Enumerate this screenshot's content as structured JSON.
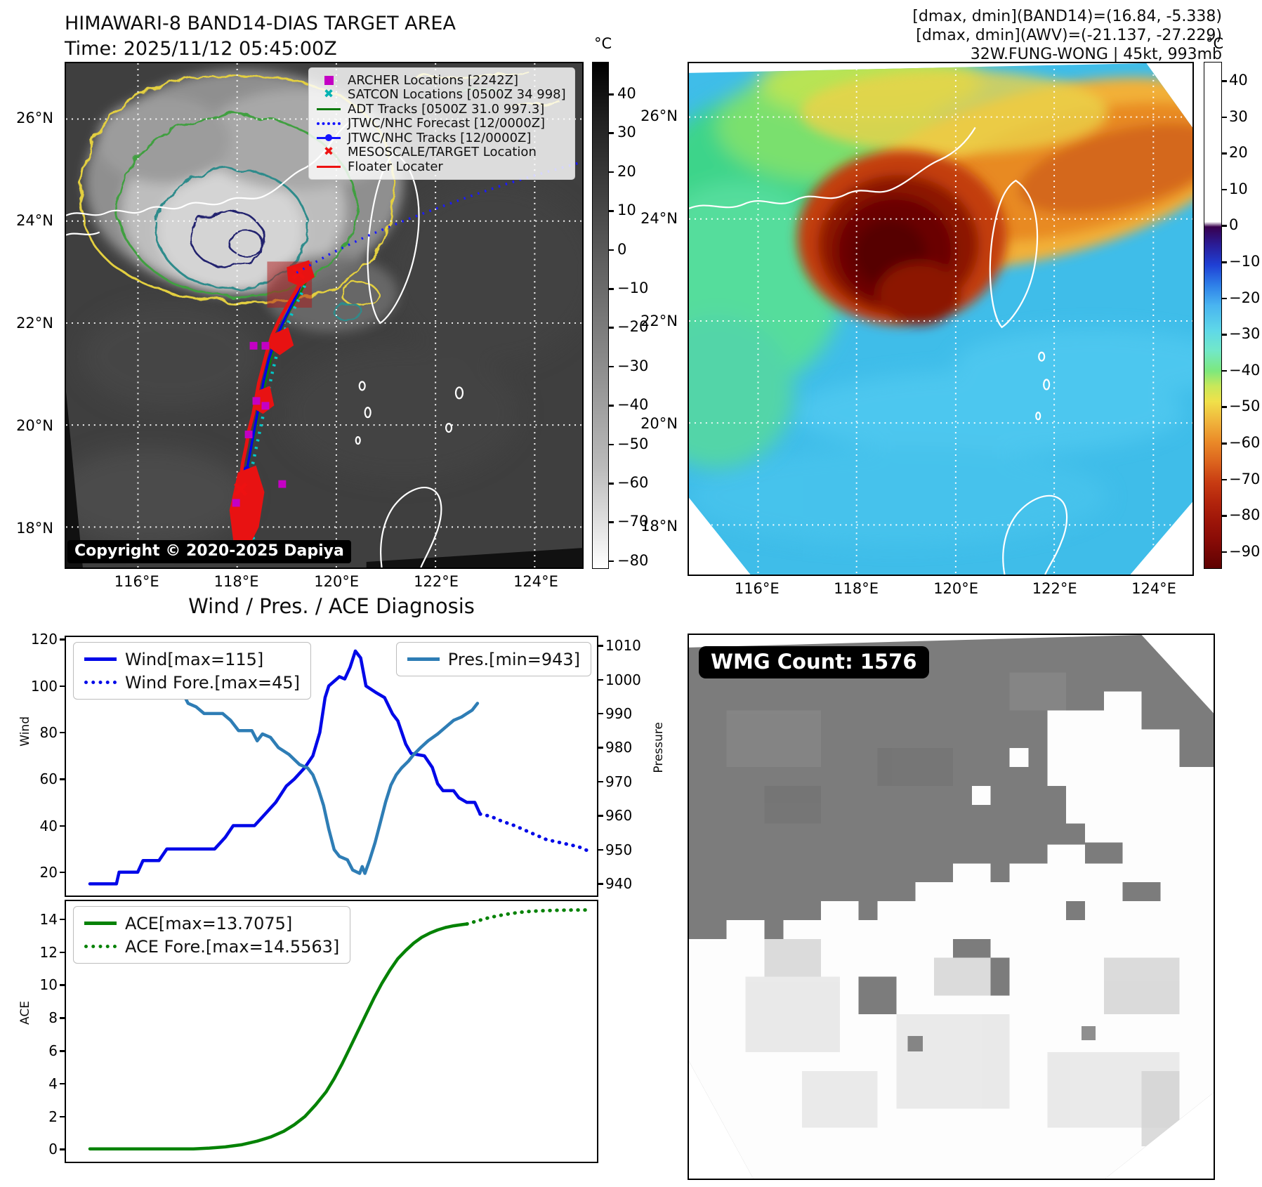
{
  "band14": {
    "title": "HIMAWARI-8 BAND14-DIAS TARGET AREA",
    "time": "Time: 2025/11/12 05:45:00Z",
    "copyright": "Copyright © 2020-2025 Dapiya",
    "legend": [
      {
        "label": "ARCHER Locations [2242Z]",
        "marker": "square",
        "color": "#c400c4"
      },
      {
        "label": "SATCON Locations [0500Z 34 998]",
        "marker": "cross",
        "color": "#00b2b2"
      },
      {
        "label": "ADT Tracks [0500Z 31.0 997.3]",
        "marker": "line",
        "color": "#0e7a0e"
      },
      {
        "label": "JTWC/NHC Forecast [12/0000Z]",
        "marker": "dotted",
        "color": "#1414ff"
      },
      {
        "label": "JTWC/NHC Tracks [12/0000Z]",
        "marker": "line-dot",
        "color": "#1414ff"
      },
      {
        "label": "MESOSCALE/TARGET Location",
        "marker": "cross",
        "color": "#ee1111"
      },
      {
        "label": "Floater Locater",
        "marker": "line",
        "color": "#ee1111"
      }
    ],
    "lon_ticks": [
      "116°E",
      "118°E",
      "120°E",
      "122°E",
      "124°E"
    ],
    "lat_ticks": [
      "26°N",
      "24°N",
      "22°N",
      "20°N",
      "18°N"
    ],
    "colorbar": {
      "unit": "°C",
      "ticks": [
        "40",
        "30",
        "20",
        "10",
        "0",
        "−10",
        "−20",
        "−30",
        "−40",
        "−50",
        "−60",
        "−70",
        "−80"
      ]
    }
  },
  "awv": {
    "header": [
      "[dmax, dmin](BAND14)=(16.84, -5.338)",
      "[dmax, dmin](AWV)=(-21.137, -27.229)",
      "32W.FUNG-WONG | 45kt, 993mb"
    ],
    "lon_ticks": [
      "116°E",
      "118°E",
      "120°E",
      "122°E",
      "124°E"
    ],
    "lat_ticks": [
      "26°N",
      "24°N",
      "22°N",
      "20°N",
      "18°N"
    ],
    "colorbar": {
      "unit": "°C",
      "ticks": [
        "40",
        "30",
        "20",
        "10",
        "0",
        "−10",
        "−20",
        "−30",
        "−40",
        "−50",
        "−60",
        "−70",
        "−80",
        "−90"
      ]
    }
  },
  "diagnosis": {
    "title": "Wind / Pres. / ACE Diagnosis"
  },
  "wmg": {
    "count_label": "WMG Count: 1576"
  },
  "chart_data": [
    {
      "type": "line",
      "title": "Wind / Pres. / ACE Diagnosis",
      "ylabel": "Wind",
      "ylabel_right": "Pressure",
      "ylim": [
        10,
        121
      ],
      "ylim_right": [
        936.5,
        1012.5
      ],
      "yticks": [
        120,
        100,
        80,
        60,
        40,
        20
      ],
      "yticks_right": [
        1010,
        1000,
        990,
        980,
        970,
        960,
        950,
        940
      ],
      "grid": false,
      "legend_position": "upper left / upper right",
      "series": [
        {
          "name": "Wind[max=115]",
          "color": "#0008e8",
          "style": "solid",
          "axis": "left",
          "points": [
            [
              0.045,
              15
            ],
            [
              0.095,
              15
            ],
            [
              0.1,
              20
            ],
            [
              0.135,
              20
            ],
            [
              0.145,
              25
            ],
            [
              0.175,
              25
            ],
            [
              0.19,
              30
            ],
            [
              0.28,
              30
            ],
            [
              0.3,
              35
            ],
            [
              0.315,
              40
            ],
            [
              0.355,
              40
            ],
            [
              0.375,
              45
            ],
            [
              0.395,
              50
            ],
            [
              0.415,
              57
            ],
            [
              0.43,
              60
            ],
            [
              0.45,
              65
            ],
            [
              0.465,
              70
            ],
            [
              0.478,
              80
            ],
            [
              0.488,
              95
            ],
            [
              0.495,
              100
            ],
            [
              0.515,
              104
            ],
            [
              0.525,
              103
            ],
            [
              0.535,
              108
            ],
            [
              0.545,
              115
            ],
            [
              0.555,
              112
            ],
            [
              0.565,
              100
            ],
            [
              0.585,
              97
            ],
            [
              0.6,
              95
            ],
            [
              0.615,
              88
            ],
            [
              0.625,
              85
            ],
            [
              0.64,
              75
            ],
            [
              0.65,
              71
            ],
            [
              0.675,
              70
            ],
            [
              0.69,
              65
            ],
            [
              0.7,
              58
            ],
            [
              0.71,
              55
            ],
            [
              0.73,
              55
            ],
            [
              0.74,
              52
            ],
            [
              0.755,
              50
            ],
            [
              0.77,
              50
            ],
            [
              0.78,
              45
            ]
          ]
        },
        {
          "name": "Wind Fore.[max=45]",
          "color": "#0008e8",
          "style": "dotted",
          "axis": "left",
          "points": [
            [
              0.78,
              45
            ],
            [
              0.8,
              44
            ],
            [
              0.82,
              42
            ],
            [
              0.845,
              40
            ],
            [
              0.865,
              38
            ],
            [
              0.885,
              36
            ],
            [
              0.905,
              34
            ],
            [
              0.925,
              33
            ],
            [
              0.945,
              32
            ],
            [
              0.965,
              31
            ],
            [
              0.985,
              29
            ]
          ]
        },
        {
          "name": "Pres.[min=943]",
          "color": "#2e7db5",
          "style": "solid",
          "axis": "right",
          "points": [
            [
              0.045,
              1003
            ],
            [
              0.07,
              1002
            ],
            [
              0.095,
              1002
            ],
            [
              0.105,
              1000
            ],
            [
              0.125,
              1000
            ],
            [
              0.14,
              999
            ],
            [
              0.155,
              998
            ],
            [
              0.185,
              998
            ],
            [
              0.195,
              995
            ],
            [
              0.205,
              997
            ],
            [
              0.22,
              996
            ],
            [
              0.23,
              993
            ],
            [
              0.245,
              992
            ],
            [
              0.26,
              990
            ],
            [
              0.295,
              990
            ],
            [
              0.31,
              988
            ],
            [
              0.325,
              985
            ],
            [
              0.35,
              985
            ],
            [
              0.36,
              982
            ],
            [
              0.37,
              984
            ],
            [
              0.385,
              983
            ],
            [
              0.4,
              980
            ],
            [
              0.42,
              978
            ],
            [
              0.44,
              975
            ],
            [
              0.455,
              974
            ],
            [
              0.465,
              972
            ],
            [
              0.475,
              968
            ],
            [
              0.485,
              963
            ],
            [
              0.495,
              956
            ],
            [
              0.505,
              950
            ],
            [
              0.515,
              948
            ],
            [
              0.53,
              947
            ],
            [
              0.54,
              944
            ],
            [
              0.553,
              943
            ],
            [
              0.558,
              945
            ],
            [
              0.563,
              943
            ],
            [
              0.572,
              947
            ],
            [
              0.582,
              952
            ],
            [
              0.592,
              958
            ],
            [
              0.602,
              964
            ],
            [
              0.612,
              969
            ],
            [
              0.622,
              972
            ],
            [
              0.632,
              974
            ],
            [
              0.645,
              976
            ],
            [
              0.655,
              978
            ],
            [
              0.668,
              980
            ],
            [
              0.682,
              982
            ],
            [
              0.7,
              984
            ],
            [
              0.715,
              986
            ],
            [
              0.73,
              988
            ],
            [
              0.745,
              989
            ],
            [
              0.755,
              990
            ],
            [
              0.765,
              991
            ],
            [
              0.775,
              993
            ]
          ]
        }
      ]
    },
    {
      "type": "line",
      "ylabel": "ACE",
      "ylim": [
        -0.75,
        15.1
      ],
      "yticks": [
        14,
        12,
        10,
        8,
        6,
        4,
        2,
        0
      ],
      "grid": false,
      "series": [
        {
          "name": "ACE[max=13.7075]",
          "color": "#058205",
          "style": "solid",
          "axis": "left",
          "points": [
            [
              0.045,
              0.03
            ],
            [
              0.24,
              0.03
            ],
            [
              0.27,
              0.08
            ],
            [
              0.3,
              0.15
            ],
            [
              0.33,
              0.28
            ],
            [
              0.36,
              0.5
            ],
            [
              0.385,
              0.75
            ],
            [
              0.41,
              1.1
            ],
            [
              0.43,
              1.5
            ],
            [
              0.45,
              2.0
            ],
            [
              0.47,
              2.7
            ],
            [
              0.49,
              3.5
            ],
            [
              0.505,
              4.3
            ],
            [
              0.52,
              5.2
            ],
            [
              0.535,
              6.2
            ],
            [
              0.55,
              7.2
            ],
            [
              0.565,
              8.2
            ],
            [
              0.58,
              9.2
            ],
            [
              0.595,
              10.1
            ],
            [
              0.61,
              10.9
            ],
            [
              0.625,
              11.6
            ],
            [
              0.64,
              12.1
            ],
            [
              0.655,
              12.55
            ],
            [
              0.67,
              12.9
            ],
            [
              0.685,
              13.15
            ],
            [
              0.7,
              13.35
            ],
            [
              0.715,
              13.5
            ],
            [
              0.73,
              13.6
            ],
            [
              0.745,
              13.67
            ],
            [
              0.755,
              13.71
            ]
          ]
        },
        {
          "name": "ACE Fore.[max=14.5563]",
          "color": "#058205",
          "style": "dotted",
          "axis": "left",
          "points": [
            [
              0.755,
              13.71
            ],
            [
              0.775,
              13.9
            ],
            [
              0.795,
              14.08
            ],
            [
              0.815,
              14.22
            ],
            [
              0.835,
              14.33
            ],
            [
              0.855,
              14.42
            ],
            [
              0.875,
              14.48
            ],
            [
              0.9,
              14.52
            ],
            [
              0.93,
              14.55
            ],
            [
              0.96,
              14.56
            ],
            [
              0.985,
              14.56
            ]
          ]
        }
      ]
    }
  ]
}
